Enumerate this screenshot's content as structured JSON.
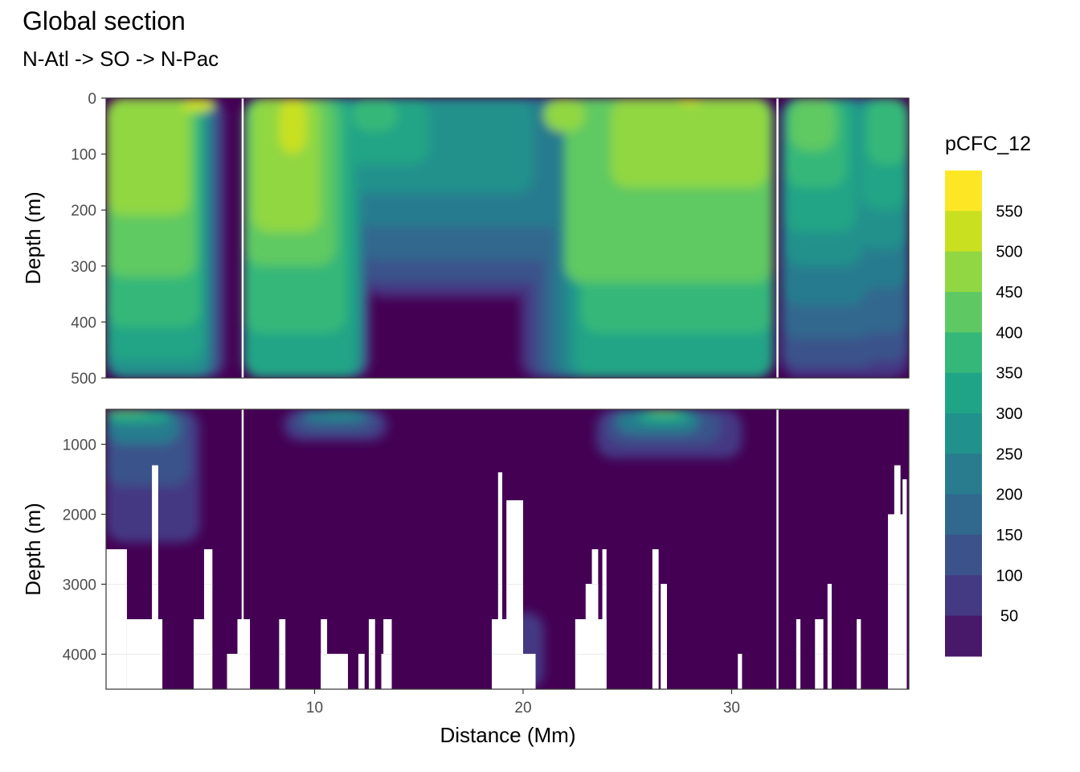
{
  "chart_data": {
    "type": "heatmap",
    "title": "Global section",
    "subtitle": "N-Atl -> SO -> N-Pac",
    "xlabel": "Distance (Mm)",
    "ylabel": "Depth (m)",
    "xlim": [
      0,
      38.5
    ],
    "x_ticks": [
      10,
      20,
      30
    ],
    "x_tick_labels": [
      "10",
      "20",
      "30"
    ],
    "section_breaks": [
      6.55,
      32.2
    ],
    "panels": [
      {
        "name": "upper",
        "ylim": [
          0,
          500
        ],
        "y_ticks": [
          0,
          100,
          200,
          300,
          400,
          500
        ],
        "y_tick_labels": [
          "0",
          "100",
          "200",
          "300",
          "400",
          "500"
        ]
      },
      {
        "name": "lower",
        "ylim": [
          500,
          4500
        ],
        "y_ticks": [
          1000,
          2000,
          3000,
          4000
        ],
        "y_tick_labels": [
          "1000",
          "2000",
          "3000",
          "4000"
        ]
      }
    ],
    "legend": {
      "title": "pCFC_12",
      "labels": [
        "550",
        "500",
        "450",
        "400",
        "350",
        "300",
        "250",
        "200",
        "150",
        "100",
        "50"
      ],
      "breaks": [
        0,
        50,
        100,
        150,
        200,
        250,
        300,
        350,
        400,
        450,
        500,
        550,
        600
      ],
      "colors": [
        "#440154",
        "#48186a",
        "#443983",
        "#3b528b",
        "#31688e",
        "#287c8e",
        "#21918c",
        "#20a486",
        "#35b779",
        "#5ec962",
        "#90d743",
        "#c8e020",
        "#fde725"
      ]
    },
    "contours_upper": [
      {
        "level": 550,
        "bands": [
          [
            3.6,
            5.2,
            0,
            25
          ],
          [
            8.3,
            9.6,
            0,
            100
          ],
          [
            27.5,
            28.5,
            0,
            12
          ]
        ]
      },
      {
        "level": 500,
        "bands": [
          [
            0.0,
            4.0,
            0,
            210
          ],
          [
            7.0,
            10.3,
            0,
            240
          ],
          [
            21.0,
            23.0,
            0,
            60
          ],
          [
            24.2,
            31.8,
            0,
            160
          ]
        ]
      },
      {
        "level": 450,
        "bands": [
          [
            0.0,
            4.3,
            0,
            320
          ],
          [
            6.7,
            11.0,
            0,
            300
          ],
          [
            22.0,
            32.0,
            0,
            330
          ],
          [
            32.8,
            35.0,
            0,
            95
          ]
        ]
      },
      {
        "level": 400,
        "bands": [
          [
            0.0,
            4.5,
            0,
            410
          ],
          [
            6.6,
            11.5,
            0,
            420
          ],
          [
            11.8,
            14.0,
            0,
            60
          ],
          [
            22.8,
            32.0,
            0,
            420
          ],
          [
            32.6,
            35.5,
            0,
            160
          ],
          [
            36.5,
            38.5,
            0,
            120
          ]
        ]
      },
      {
        "level": 350,
        "bands": [
          [
            0.0,
            4.7,
            0,
            470
          ],
          [
            6.6,
            12.0,
            0,
            500
          ],
          [
            11.5,
            15.5,
            0,
            120
          ],
          [
            22.5,
            32.0,
            0,
            500
          ],
          [
            32.5,
            36.0,
            0,
            240
          ],
          [
            36.2,
            38.5,
            0,
            200
          ]
        ]
      },
      {
        "level": 300,
        "bands": [
          [
            0.0,
            4.9,
            0,
            500
          ],
          [
            6.6,
            12.2,
            0,
            500
          ],
          [
            11.5,
            20.5,
            0,
            170
          ],
          [
            22.0,
            32.0,
            0,
            500
          ],
          [
            32.5,
            36.3,
            0,
            300
          ],
          [
            36.0,
            38.5,
            0,
            270
          ]
        ]
      },
      {
        "level": 250,
        "bands": [
          [
            0.0,
            5.0,
            0,
            500
          ],
          [
            6.6,
            12.3,
            0,
            500
          ],
          [
            12.0,
            22.5,
            0,
            230
          ],
          [
            21.5,
            32.0,
            0,
            500
          ],
          [
            32.4,
            36.5,
            0,
            370
          ],
          [
            35.8,
            38.5,
            0,
            340
          ]
        ]
      },
      {
        "level": 200,
        "bands": [
          [
            0.0,
            5.2,
            0,
            500
          ],
          [
            6.6,
            12.4,
            0,
            500
          ],
          [
            12.2,
            24.0,
            0,
            290
          ],
          [
            21.0,
            32.0,
            0,
            500
          ],
          [
            32.4,
            36.8,
            0,
            430
          ],
          [
            35.6,
            38.5,
            0,
            420
          ]
        ]
      },
      {
        "level": 150,
        "bands": [
          [
            0.0,
            5.4,
            0,
            500
          ],
          [
            6.6,
            12.5,
            0,
            500
          ],
          [
            12.3,
            24.5,
            0,
            330
          ],
          [
            20.5,
            32.0,
            0,
            500
          ],
          [
            32.4,
            37.0,
            0,
            480
          ],
          [
            35.4,
            38.5,
            0,
            470
          ]
        ]
      },
      {
        "level": 100,
        "bands": [
          [
            0.0,
            5.6,
            0,
            500
          ],
          [
            6.6,
            12.6,
            0,
            500
          ],
          [
            12.4,
            25.0,
            0,
            350
          ],
          [
            20.0,
            32.0,
            0,
            500
          ],
          [
            32.4,
            37.2,
            0,
            500
          ],
          [
            35.3,
            38.5,
            0,
            500
          ]
        ]
      },
      {
        "level": 50,
        "bands": [
          [
            0.0,
            5.8,
            0,
            500
          ],
          [
            6.6,
            12.7,
            0,
            500
          ],
          [
            12.5,
            25.5,
            0,
            360
          ],
          [
            19.8,
            32.0,
            0,
            500
          ],
          [
            32.4,
            37.4,
            0,
            500
          ],
          [
            35.2,
            38.5,
            0,
            500
          ]
        ]
      }
    ],
    "contours_lower": [
      {
        "level": 450,
        "bands": [
          [
            0.0,
            2.0,
            500,
            560
          ],
          [
            26.0,
            27.5,
            500,
            570
          ]
        ]
      },
      {
        "level": 350,
        "bands": [
          [
            0.0,
            3.0,
            500,
            700
          ],
          [
            10.5,
            12.0,
            500,
            560
          ],
          [
            25.5,
            28.0,
            500,
            700
          ]
        ]
      },
      {
        "level": 250,
        "bands": [
          [
            0.0,
            3.5,
            500,
            1000
          ],
          [
            9.5,
            12.5,
            500,
            700
          ],
          [
            24.5,
            28.5,
            500,
            850
          ]
        ]
      },
      {
        "level": 150,
        "bands": [
          [
            0.0,
            4.0,
            500,
            1600
          ],
          [
            9.0,
            13.0,
            500,
            850
          ],
          [
            24.0,
            29.5,
            500,
            1000
          ]
        ]
      },
      {
        "level": 100,
        "bands": [
          [
            0.0,
            4.5,
            500,
            2400
          ],
          [
            8.5,
            13.5,
            500,
            950
          ],
          [
            23.5,
            30.5,
            500,
            1200
          ],
          [
            19.0,
            21.0,
            3400,
            4500
          ]
        ]
      }
    ],
    "bathymetry_gaps": [
      [
        0.0,
        1.0,
        2500
      ],
      [
        1.0,
        2.7,
        3500
      ],
      [
        2.2,
        2.5,
        1300
      ],
      [
        4.2,
        5.0,
        3500
      ],
      [
        4.7,
        5.1,
        2500
      ],
      [
        5.8,
        6.9,
        4000
      ],
      [
        6.3,
        6.9,
        3500
      ],
      [
        8.3,
        8.6,
        3500
      ],
      [
        10.3,
        11.6,
        4000
      ],
      [
        10.3,
        10.6,
        3500
      ],
      [
        12.1,
        12.4,
        4000
      ],
      [
        12.6,
        12.9,
        3500
      ],
      [
        13.2,
        13.5,
        4000
      ],
      [
        13.3,
        13.7,
        3500
      ],
      [
        18.5,
        19.3,
        3500
      ],
      [
        18.8,
        19.0,
        1400
      ],
      [
        19.2,
        20.0,
        1800
      ],
      [
        19.8,
        20.6,
        4000
      ],
      [
        23.0,
        23.6,
        3000
      ],
      [
        22.5,
        24.0,
        3500
      ],
      [
        23.3,
        23.6,
        2500
      ],
      [
        23.8,
        24.0,
        2500
      ],
      [
        26.2,
        26.5,
        2500
      ],
      [
        26.6,
        26.9,
        3000
      ],
      [
        30.3,
        30.5,
        4000
      ],
      [
        33.1,
        33.3,
        3500
      ],
      [
        34.0,
        34.4,
        3500
      ],
      [
        34.6,
        34.8,
        3000
      ],
      [
        36.0,
        36.2,
        3500
      ],
      [
        37.5,
        38.3,
        2000
      ],
      [
        37.8,
        38.1,
        1300
      ],
      [
        38.2,
        38.4,
        1500
      ]
    ]
  }
}
